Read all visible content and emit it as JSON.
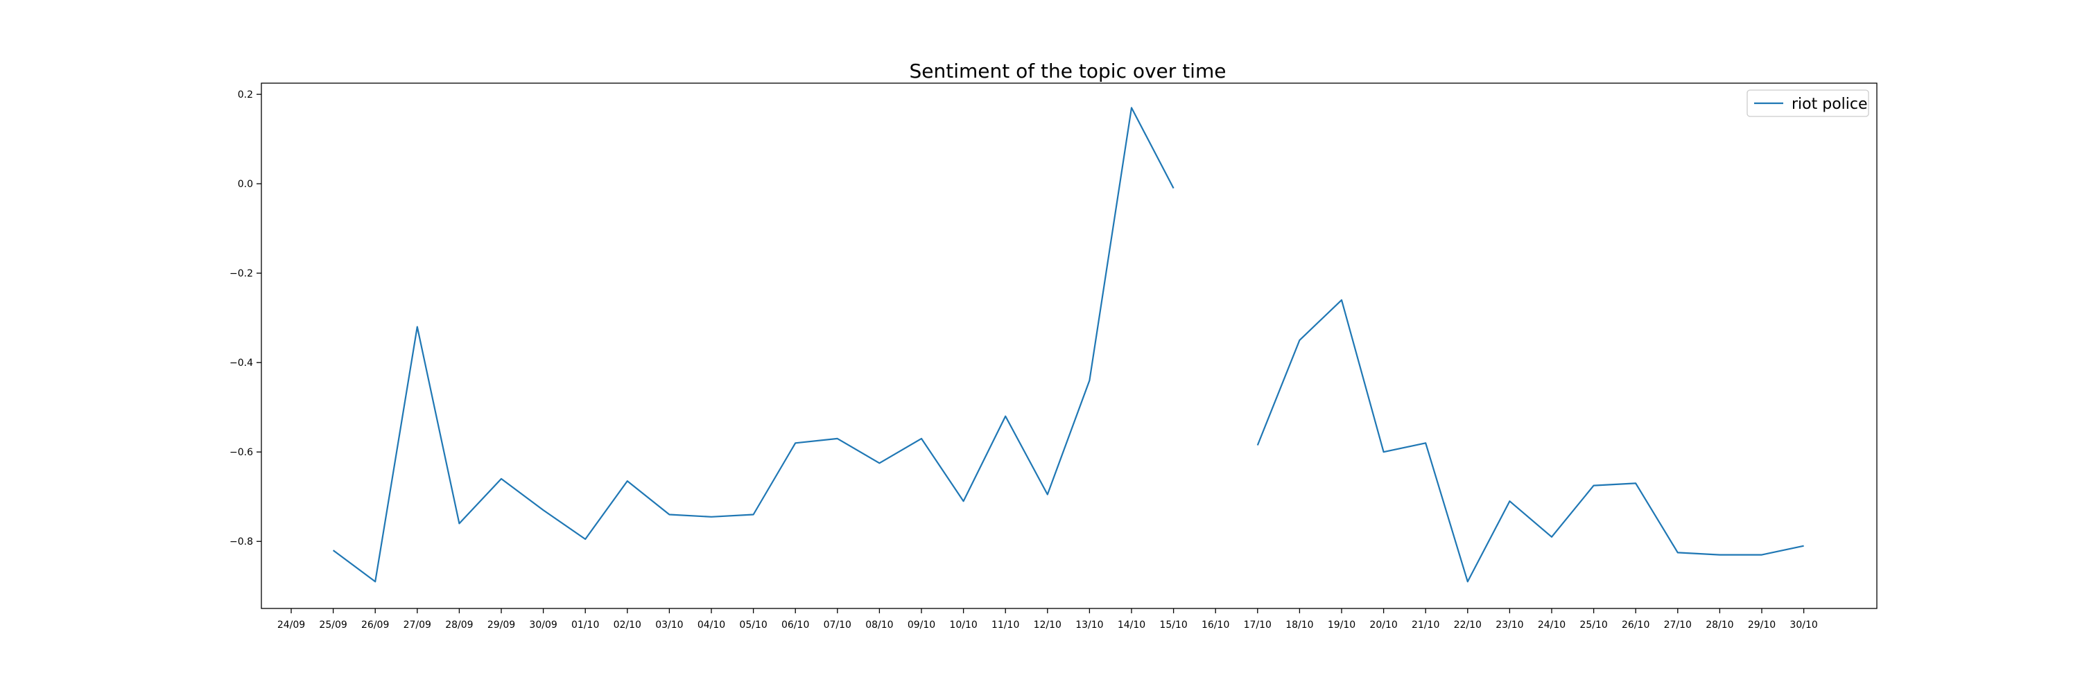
{
  "chart_data": {
    "type": "line",
    "title": "Sentiment of the topic over time",
    "xlabel": "",
    "ylabel": "",
    "categories": [
      "24/09",
      "25/09",
      "26/09",
      "27/09",
      "28/09",
      "29/09",
      "30/09",
      "01/10",
      "02/10",
      "03/10",
      "04/10",
      "05/10",
      "06/10",
      "07/10",
      "08/10",
      "09/10",
      "10/10",
      "11/10",
      "12/10",
      "13/10",
      "14/10",
      "15/10",
      "16/10",
      "17/10",
      "18/10",
      "19/10",
      "20/10",
      "21/10",
      "22/10",
      "23/10",
      "24/10",
      "25/10",
      "26/10",
      "27/10",
      "28/10",
      "29/10",
      "30/10"
    ],
    "series": [
      {
        "name": "riot police",
        "color": "#1f77b4",
        "values": [
          null,
          -0.82,
          -0.89,
          -0.32,
          -0.76,
          -0.66,
          -0.73,
          -0.795,
          -0.665,
          -0.74,
          -0.745,
          -0.74,
          -0.58,
          -0.57,
          -0.625,
          -0.57,
          -0.71,
          -0.52,
          -0.695,
          -0.44,
          0.17,
          -0.01,
          null,
          -0.585,
          -0.35,
          -0.26,
          -0.6,
          -0.58,
          -0.89,
          -0.71,
          -0.79,
          -0.675,
          -0.67,
          -0.825,
          -0.83,
          -0.83,
          -0.81
        ]
      }
    ],
    "ylim": [
      -0.95,
      0.225
    ],
    "yticks": [
      0.2,
      0.0,
      -0.2,
      -0.4,
      -0.6,
      -0.8
    ],
    "ytick_labels": [
      "0.2",
      "0.0",
      "−0.2",
      "−0.4",
      "−0.6",
      "−0.8"
    ],
    "grid": false,
    "legend": "top-right"
  }
}
